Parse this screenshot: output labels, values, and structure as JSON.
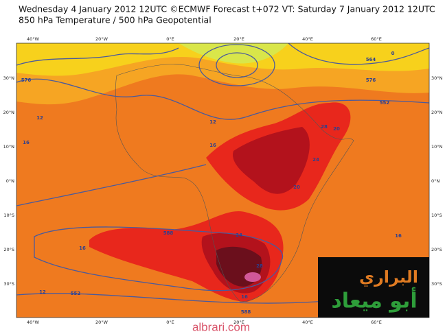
{
  "header": {
    "line1": "Wednesday 4 January 2012 12UTC ©ECMWF Forecast t+072 VT: Saturday 7 January 2012 12UTC",
    "line2": "850 hPa Temperature / 500 hPa Geopotential"
  },
  "axes": {
    "longitudes": [
      "40°W",
      "20°W",
      "0°E",
      "20°E",
      "40°E",
      "60°E"
    ],
    "latitudes": [
      "30°N",
      "20°N",
      "10°N",
      "0°N",
      "10°S",
      "20°S",
      "30°S"
    ]
  },
  "contour_labels": [
    "576",
    "12",
    "16",
    "16",
    "12",
    "552",
    "564",
    "576",
    "16",
    "588",
    "24",
    "28",
    "20",
    "24",
    "20",
    "28",
    "552",
    "12",
    "16",
    "588",
    "16",
    "0"
  ],
  "logo": {
    "line1": "البراري",
    "line2": "أبو ميعاد"
  },
  "watermark": "albrari.com"
}
